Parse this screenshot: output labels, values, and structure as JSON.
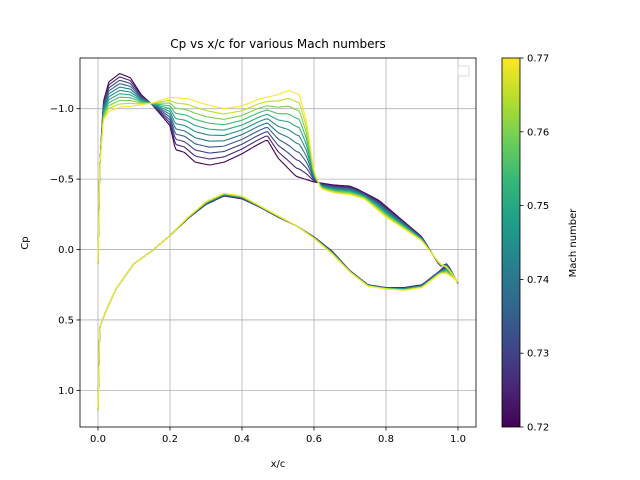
{
  "chart_data": {
    "type": "line",
    "title": "Cp vs x/c for various Mach numbers",
    "xlabel": "x/c",
    "ylabel": "Cp",
    "xlim": [
      -0.05,
      1.05
    ],
    "ylim": [
      1.26,
      -1.36
    ],
    "y_inverted": true,
    "grid": true,
    "legend": "top-right (empty)",
    "x_ticks": [
      0.0,
      0.2,
      0.4,
      0.6,
      0.8,
      1.0
    ],
    "x_tick_labels": [
      "0.0",
      "0.2",
      "0.4",
      "0.6",
      "0.8",
      "1.0"
    ],
    "y_ticks": [
      -1.0,
      -0.5,
      0.0,
      0.5,
      1.0
    ],
    "y_tick_labels": [
      "−1.0",
      "−0.5",
      "0.0",
      "0.5",
      "1.0"
    ],
    "colorbar": {
      "label": "Mach number",
      "min": 0.72,
      "max": 0.77,
      "ticks": [
        0.72,
        0.73,
        0.74,
        0.75,
        0.76,
        0.77
      ],
      "tick_labels": [
        "0.72",
        "0.73",
        "0.74",
        "0.75",
        "0.76",
        "0.77"
      ],
      "colormap": [
        "#440154",
        "#482878",
        "#3e4989",
        "#31688e",
        "#26828e",
        "#1f9e89",
        "#35b779",
        "#6ece58",
        "#b5de2b",
        "#fde725"
      ]
    },
    "series": [
      {
        "mach": 0.72,
        "lower": [
          [
            0,
            1.14
          ],
          [
            0.005,
            0.55
          ],
          [
            0.02,
            0.45
          ],
          [
            0.05,
            0.28
          ],
          [
            0.1,
            0.1
          ],
          [
            0.15,
            0.01
          ],
          [
            0.2,
            -0.1
          ],
          [
            0.25,
            -0.22
          ],
          [
            0.3,
            -0.32
          ],
          [
            0.35,
            -0.38
          ],
          [
            0.4,
            -0.36
          ],
          [
            0.45,
            -0.3
          ],
          [
            0.5,
            -0.23
          ],
          [
            0.55,
            -0.17
          ],
          [
            0.6,
            -0.09
          ],
          [
            0.65,
            0.01
          ],
          [
            0.7,
            0.15
          ],
          [
            0.75,
            0.25
          ],
          [
            0.8,
            0.27
          ],
          [
            0.85,
            0.27
          ],
          [
            0.9,
            0.25
          ],
          [
            0.95,
            0.15
          ],
          [
            0.97,
            0.1
          ],
          [
            1.0,
            0.24
          ]
        ],
        "upper": [
          [
            0,
            0.1
          ],
          [
            0.005,
            -0.6
          ],
          [
            0.015,
            -1.05
          ],
          [
            0.03,
            -1.19
          ],
          [
            0.06,
            -1.25
          ],
          [
            0.09,
            -1.22
          ],
          [
            0.12,
            -1.1
          ],
          [
            0.15,
            -1.03
          ],
          [
            0.2,
            -0.88
          ],
          [
            0.215,
            -0.71
          ],
          [
            0.24,
            -0.69
          ],
          [
            0.27,
            -0.62
          ],
          [
            0.31,
            -0.6
          ],
          [
            0.35,
            -0.62
          ],
          [
            0.4,
            -0.68
          ],
          [
            0.44,
            -0.74
          ],
          [
            0.47,
            -0.78
          ],
          [
            0.5,
            -0.65
          ],
          [
            0.55,
            -0.52
          ],
          [
            0.6,
            -0.48
          ],
          [
            0.65,
            -0.46
          ],
          [
            0.7,
            -0.45
          ],
          [
            0.72,
            -0.43
          ],
          [
            0.78,
            -0.35
          ],
          [
            0.84,
            -0.22
          ],
          [
            0.9,
            -0.09
          ],
          [
            0.95,
            0.12
          ],
          [
            0.97,
            0.1
          ],
          [
            1.0,
            0.24
          ]
        ]
      },
      {
        "mach": 0.73
      },
      {
        "mach": 0.74
      },
      {
        "mach": 0.75
      },
      {
        "mach": 0.76
      },
      {
        "mach": 0.77,
        "lower": [
          [
            0,
            1.14
          ],
          [
            0.005,
            0.55
          ],
          [
            0.02,
            0.45
          ],
          [
            0.05,
            0.28
          ],
          [
            0.1,
            0.1
          ],
          [
            0.15,
            0.01
          ],
          [
            0.2,
            -0.1
          ],
          [
            0.25,
            -0.23
          ],
          [
            0.3,
            -0.34
          ],
          [
            0.35,
            -0.4
          ],
          [
            0.4,
            -0.38
          ],
          [
            0.45,
            -0.31
          ],
          [
            0.5,
            -0.24
          ],
          [
            0.55,
            -0.17
          ],
          [
            0.6,
            -0.08
          ],
          [
            0.65,
            0.03
          ],
          [
            0.7,
            0.16
          ],
          [
            0.75,
            0.26
          ],
          [
            0.8,
            0.28
          ],
          [
            0.85,
            0.29
          ],
          [
            0.9,
            0.27
          ],
          [
            0.95,
            0.17
          ],
          [
            0.97,
            0.17
          ],
          [
            1.0,
            0.23
          ]
        ],
        "upper": [
          [
            0,
            0.1
          ],
          [
            0.005,
            -0.6
          ],
          [
            0.015,
            -0.92
          ],
          [
            0.03,
            -0.98
          ],
          [
            0.06,
            -1.01
          ],
          [
            0.1,
            -1.02
          ],
          [
            0.15,
            -1.04
          ],
          [
            0.2,
            -1.08
          ],
          [
            0.25,
            -1.07
          ],
          [
            0.3,
            -1.03
          ],
          [
            0.35,
            -1.0
          ],
          [
            0.4,
            -1.02
          ],
          [
            0.45,
            -1.07
          ],
          [
            0.5,
            -1.1
          ],
          [
            0.53,
            -1.13
          ],
          [
            0.56,
            -1.1
          ],
          [
            0.58,
            -0.9
          ],
          [
            0.6,
            -0.55
          ],
          [
            0.62,
            -0.43
          ],
          [
            0.66,
            -0.4
          ],
          [
            0.7,
            -0.39
          ],
          [
            0.74,
            -0.36
          ],
          [
            0.8,
            -0.23
          ],
          [
            0.86,
            -0.13
          ],
          [
            0.9,
            -0.06
          ],
          [
            0.95,
            0.1
          ],
          [
            0.97,
            0.13
          ],
          [
            1.0,
            0.23
          ]
        ]
      }
    ]
  }
}
